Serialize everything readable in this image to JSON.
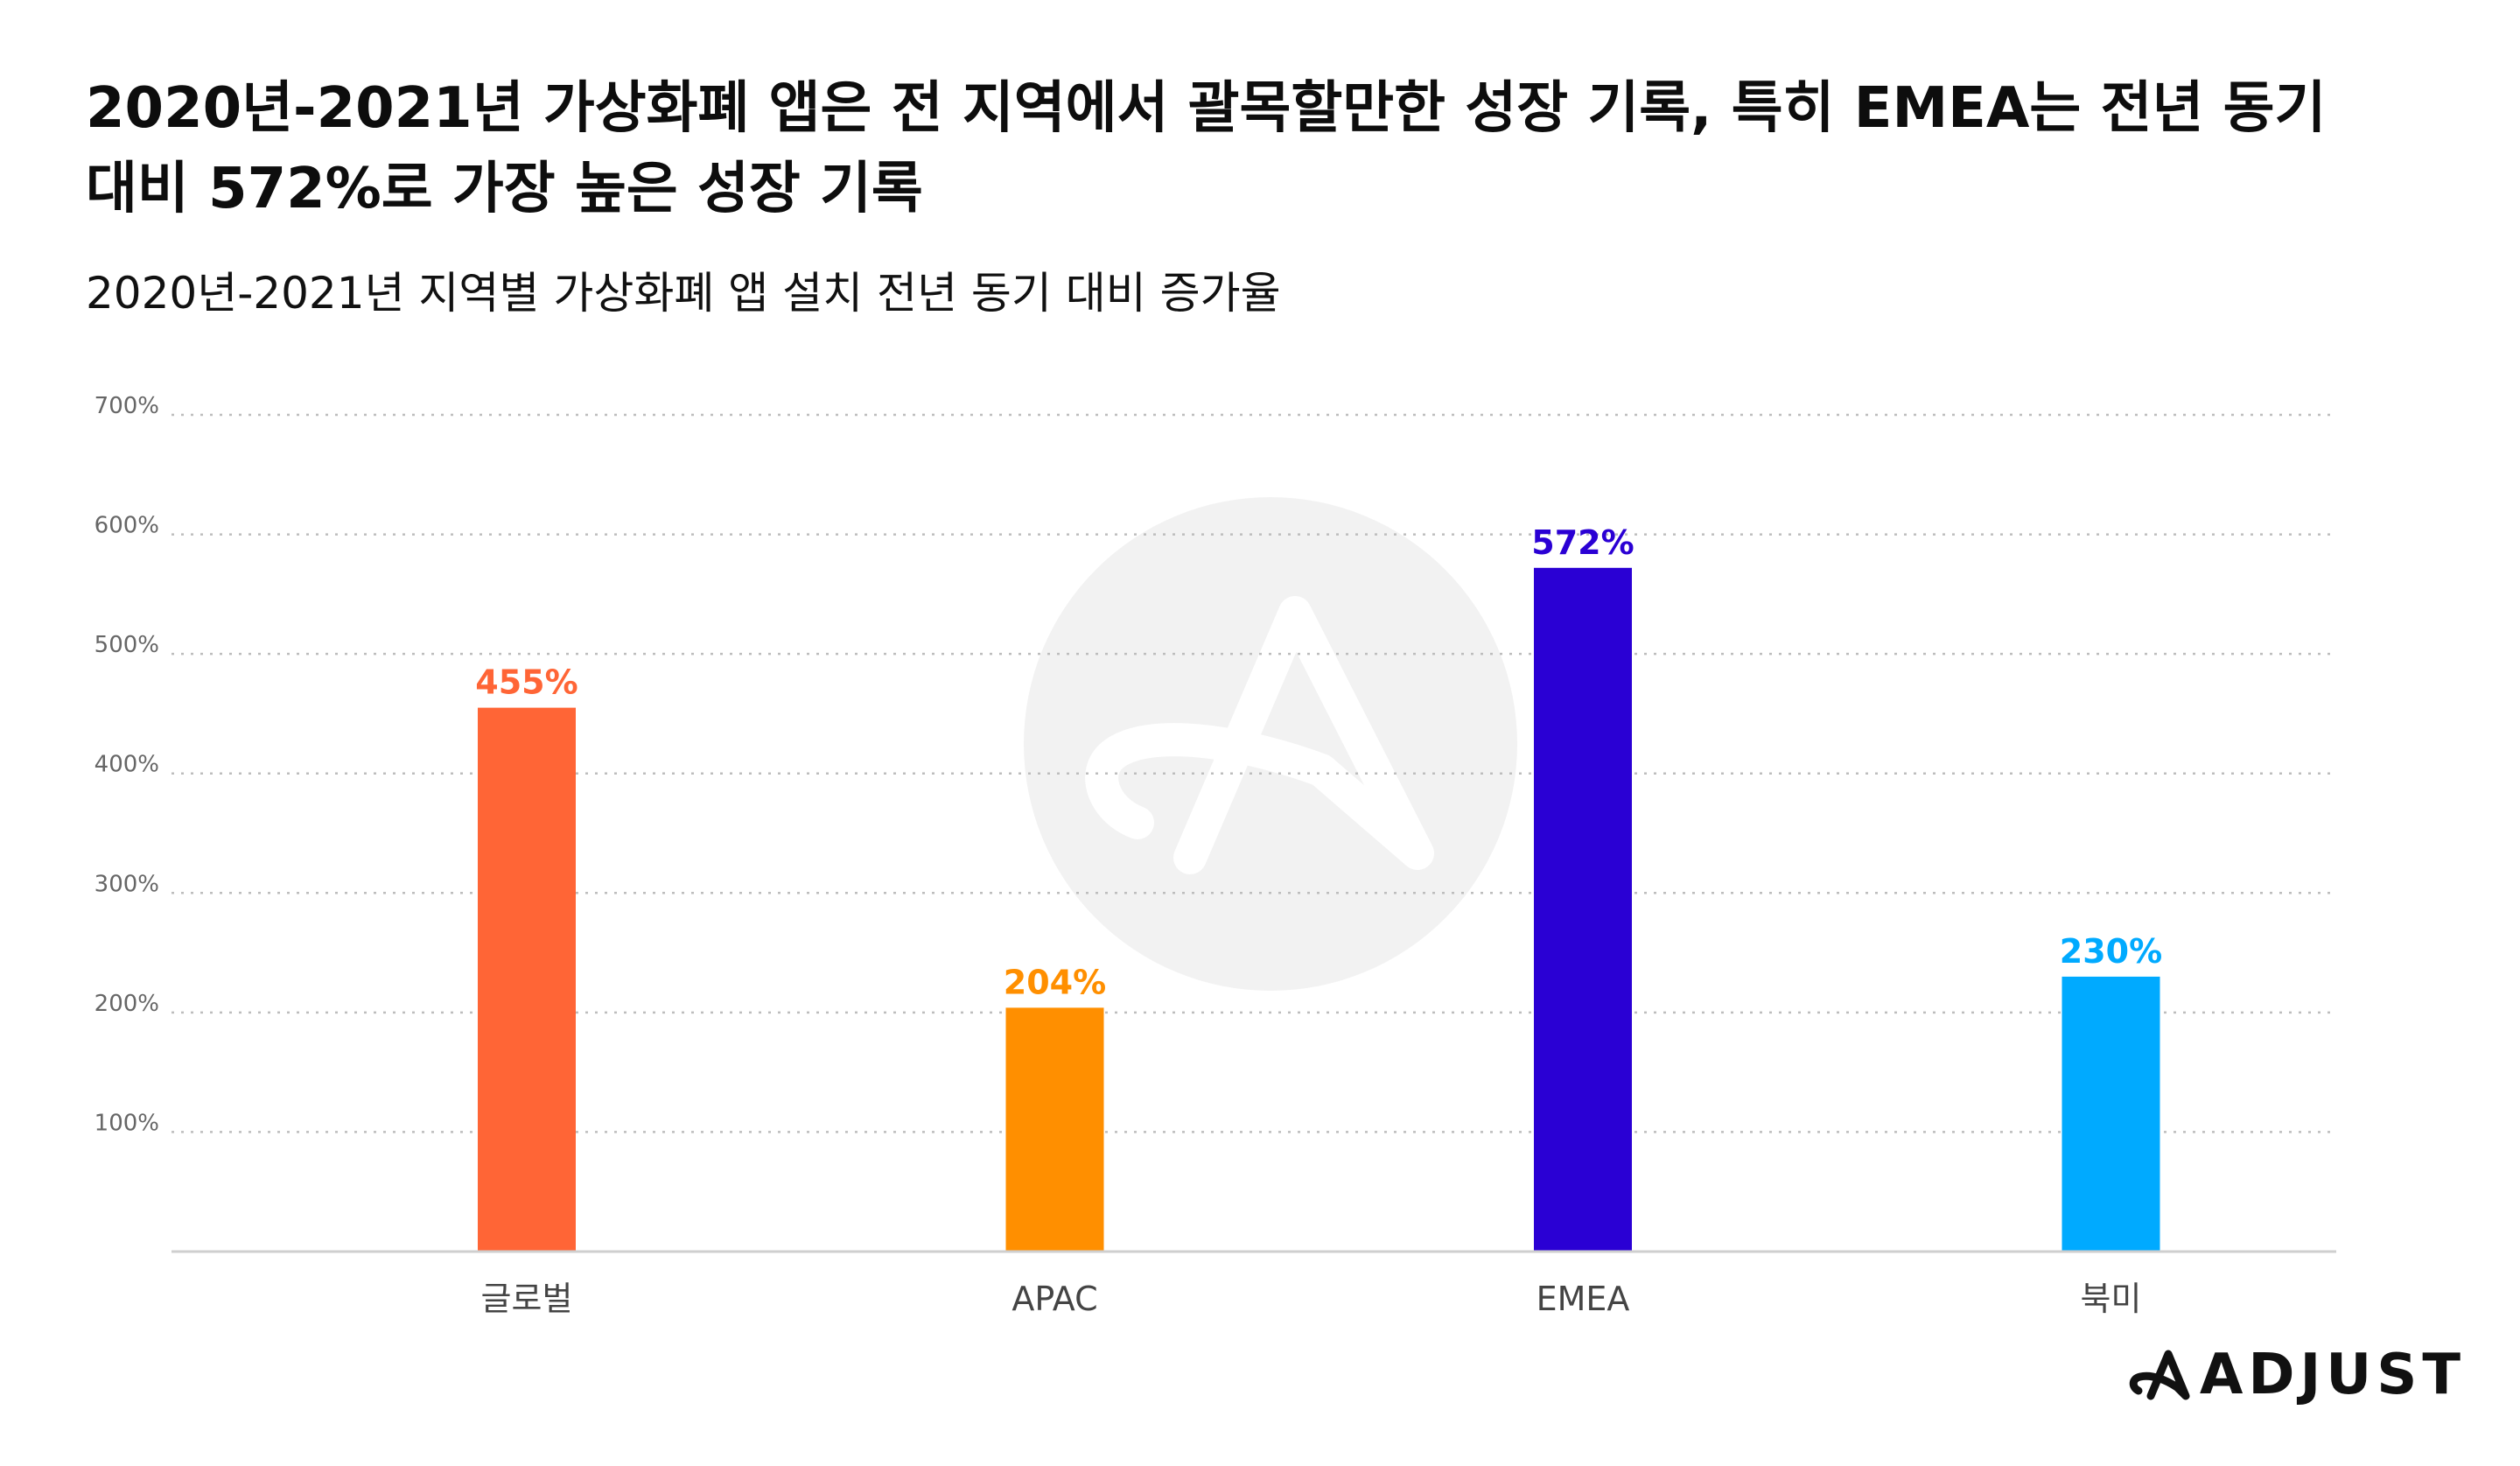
{
  "header": {
    "title": "2020년-2021년 가상화폐 앱은 전 지역에서 괄목할만한 성장 기록, 특히 EMEA는 전년 동기 대비 572%로 가장 높은 성장 기록",
    "subtitle": "2020년-2021년 지역별 가상화폐 앱 설치 전년 동기 대비 증가율"
  },
  "chart_data": {
    "type": "bar",
    "categories": [
      "글로벌",
      "APAC",
      "EMEA",
      "북미"
    ],
    "values": [
      455,
      204,
      572,
      230
    ],
    "value_labels": [
      "455%",
      "204%",
      "572%",
      "230%"
    ],
    "colors": [
      "#ff6536",
      "#ff8f00",
      "#2a00d4",
      "#00aaff"
    ],
    "ylim": [
      0,
      700
    ],
    "yticks": [
      100,
      200,
      300,
      400,
      500,
      600,
      700
    ],
    "ytick_labels": [
      "100%",
      "200%",
      "300%",
      "400%",
      "500%",
      "600%",
      "700%"
    ],
    "grid": true,
    "xlabel": "",
    "ylabel": ""
  },
  "brand": {
    "logo_text": "ADJUST",
    "logo_icon": "adjust-logo-icon"
  }
}
